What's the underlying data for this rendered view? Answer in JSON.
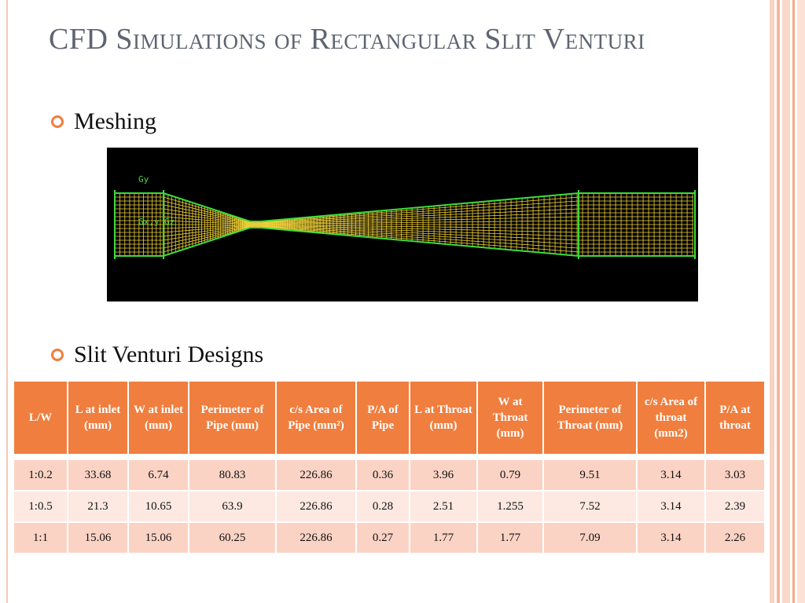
{
  "slide": {
    "title": "CFD Simulations of Rectangular Slit Venturi",
    "bullets": [
      "Meshing",
      "Slit Venturi Designs"
    ],
    "mesh_labels": [
      "Gy",
      "Gx,y Gz",
      "Gx"
    ]
  },
  "table": {
    "headers": [
      "L/W",
      "L at inlet (mm)",
      "W at inlet (mm)",
      "Perimeter of Pipe (mm)",
      "c/s Area of Pipe (mm²)",
      "P/A of Pipe",
      "L at Throat (mm)",
      "W at Throat (mm)",
      "Perimeter of Throat (mm)",
      "c/s Area of throat (mm2)",
      "P/A at throat"
    ],
    "rows": [
      [
        "1:0.2",
        "33.68",
        "6.74",
        "80.83",
        "226.86",
        "0.36",
        "3.96",
        "0.79",
        "9.51",
        "3.14",
        "3.03"
      ],
      [
        "1:0.5",
        "21.3",
        "10.65",
        "63.9",
        "226.86",
        "0.28",
        "2.51",
        "1.255",
        "7.52",
        "3.14",
        "2.39"
      ],
      [
        "1:1",
        "15.06",
        "15.06",
        "60.25",
        "226.86",
        "0.27",
        "1.77",
        "1.77",
        "7.09",
        "3.14",
        "2.26"
      ]
    ]
  },
  "colors": {
    "accent": "#f07e3e",
    "row_odd": "#fbd3c4",
    "row_even": "#fde9e2",
    "title": "#5e6470",
    "mesh_grid": "#f2d23a",
    "mesh_outline": "#3ddc3a"
  },
  "icons": {
    "bullet": "orange-circle-bullet-icon"
  }
}
